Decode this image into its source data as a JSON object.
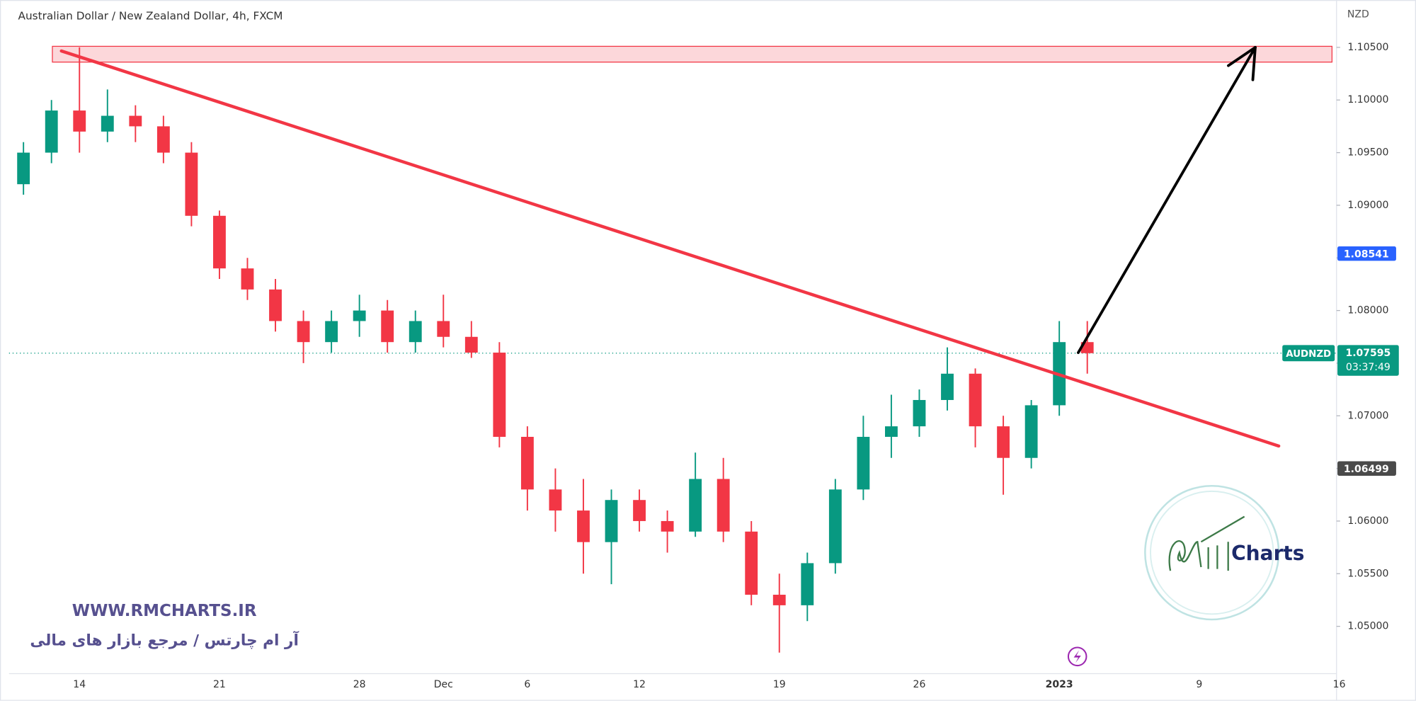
{
  "chart_data": {
    "type": "candlestick",
    "title": "Australian Dollar / New Zealand Dollar, 4h, FXCM",
    "currency": "NZD",
    "categories": [
      null,
      null,
      "14",
      null,
      null,
      null,
      null,
      "21",
      null,
      null,
      null,
      null,
      "28",
      null,
      null,
      "Dec",
      null,
      null,
      "6",
      null,
      null,
      null,
      "12",
      null,
      null,
      null,
      null,
      "19",
      null,
      null,
      null,
      null,
      "26",
      null,
      null,
      null,
      null,
      "2023",
      null,
      null,
      null,
      null,
      "9",
      null,
      null,
      null,
      null,
      "16"
    ],
    "open": [
      1.092,
      1.095,
      1.099,
      1.097,
      1.0985,
      1.0975,
      1.095,
      1.089,
      1.084,
      1.082,
      1.079,
      1.077,
      1.079,
      1.08,
      1.077,
      1.079,
      1.0775,
      1.076,
      1.068,
      1.063,
      1.061,
      1.058,
      1.062,
      1.06,
      1.059,
      1.064,
      1.059,
      1.053,
      1.052,
      1.056,
      1.063,
      1.068,
      1.069,
      1.0715,
      1.074,
      1.069,
      1.066,
      1.071,
      1.077,
      null,
      null,
      null,
      null,
      null,
      null,
      null,
      null,
      null
    ],
    "high": [
      1.096,
      1.1,
      1.105,
      1.101,
      1.0995,
      1.0985,
      1.096,
      1.0895,
      1.085,
      1.083,
      1.08,
      1.08,
      1.0815,
      1.081,
      1.08,
      1.0815,
      1.079,
      1.077,
      1.069,
      1.065,
      1.064,
      1.063,
      1.063,
      1.061,
      1.0665,
      1.066,
      1.06,
      1.055,
      1.057,
      1.064,
      1.07,
      1.072,
      1.0725,
      1.0765,
      1.0745,
      1.07,
      1.0715,
      1.079,
      1.079,
      null,
      null,
      null,
      null,
      null,
      null,
      null,
      null,
      null
    ],
    "low": [
      1.091,
      1.094,
      1.095,
      1.096,
      1.096,
      1.094,
      1.088,
      1.083,
      1.081,
      1.078,
      1.075,
      1.076,
      1.0775,
      1.076,
      1.076,
      1.0765,
      1.0755,
      1.067,
      1.061,
      1.059,
      1.055,
      1.054,
      1.059,
      1.057,
      1.0585,
      1.058,
      1.052,
      1.0475,
      1.0505,
      1.055,
      1.062,
      1.066,
      1.068,
      1.0705,
      1.067,
      1.0625,
      1.065,
      1.07,
      1.074,
      null,
      null,
      null,
      null,
      null,
      null,
      null,
      null,
      null
    ],
    "close": [
      1.095,
      1.099,
      1.097,
      1.0985,
      1.0975,
      1.095,
      1.089,
      1.084,
      1.082,
      1.079,
      1.077,
      1.079,
      1.08,
      1.077,
      1.079,
      1.0775,
      1.076,
      1.068,
      1.063,
      1.061,
      1.058,
      1.062,
      1.06,
      1.059,
      1.064,
      1.059,
      1.053,
      1.052,
      1.056,
      1.063,
      1.068,
      1.069,
      1.0715,
      1.074,
      1.069,
      1.066,
      1.071,
      1.077,
      1.07595,
      null,
      null,
      null,
      null,
      null,
      null,
      null,
      null,
      null
    ],
    "up_color": "#089981",
    "down_color": "#f23645",
    "ylim": [
      1.0455,
      1.1095
    ],
    "yticks": [
      {
        "value": 1.05,
        "label": "1.05000"
      },
      {
        "value": 1.055,
        "label": "1.05500"
      },
      {
        "value": 1.06,
        "label": "1.06000"
      },
      {
        "value": 1.065,
        "label": "1.06500"
      },
      {
        "value": 1.07,
        "label": "1.07000"
      },
      {
        "value": 1.075,
        "label": "1.07500"
      },
      {
        "value": 1.08,
        "label": "1.08000"
      },
      {
        "value": 1.085,
        "label": "1.08500"
      },
      {
        "value": 1.09,
        "label": "1.09000"
      },
      {
        "value": 1.095,
        "label": "1.09500"
      },
      {
        "value": 1.1,
        "label": "1.10000"
      },
      {
        "value": 1.105,
        "label": "1.10500"
      }
    ],
    "zone": {
      "low": 1.1036,
      "high": 1.1051,
      "color": "#f23645"
    },
    "trendline": {
      "start": 1.10466,
      "end": 1.06713,
      "color": "#f23645"
    },
    "arrow": {
      "start": 1.076,
      "end": 1.105,
      "color": "#000000"
    },
    "price_labels": [
      {
        "value": 1.08541,
        "label": "1.08541",
        "color": "#2962ff"
      },
      {
        "value": 1.06499,
        "label": "1.06499",
        "color": "#4a4a4a"
      }
    ],
    "current": {
      "symbol": "AUDNZD",
      "value": 1.07595,
      "label": "1.07595",
      "countdown": "03:37:49",
      "color": "#089981"
    }
  },
  "watermark": {
    "url": "WWW.RMCHARTS.IR",
    "tagline": "آر ام چارتس / مرجع بازار های مالی"
  },
  "logo": {
    "text": "Charts"
  }
}
